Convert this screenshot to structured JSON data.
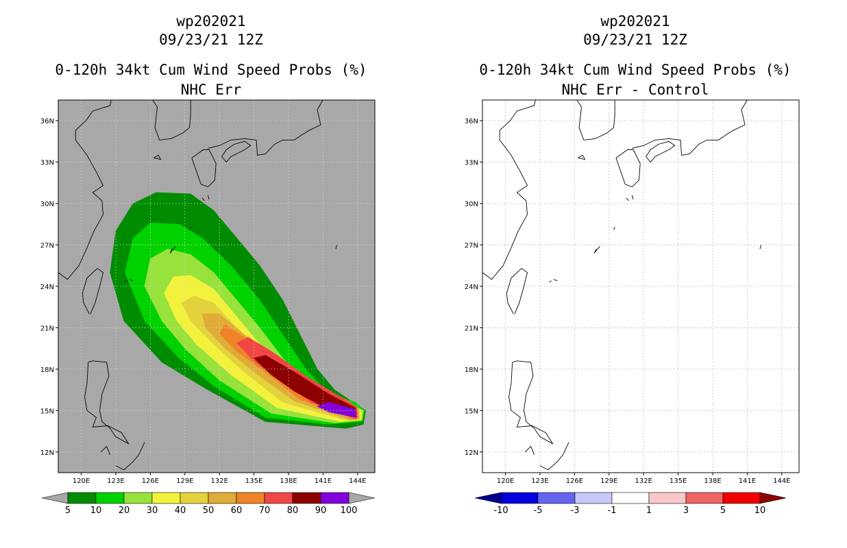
{
  "chart_data": [
    {
      "type": "heatmap",
      "storm_id": "wp202021",
      "datetime": "09/23/21 12Z",
      "title": "0-120h 34kt Cum Wind Speed Probs (%)",
      "subtitle": "NHC Err",
      "x_ticks": [
        "120E",
        "123E",
        "126E",
        "129E",
        "132E",
        "135E",
        "138E",
        "141E",
        "144E"
      ],
      "y_ticks": [
        "12N",
        "15N",
        "18N",
        "21N",
        "24N",
        "27N",
        "30N",
        "33N",
        "36N"
      ],
      "xlim": [
        118,
        145.5
      ],
      "ylim": [
        10.5,
        37.5
      ],
      "colorbar": {
        "levels": [
          "5",
          "10",
          "20",
          "30",
          "40",
          "50",
          "60",
          "70",
          "80",
          "90",
          "100"
        ],
        "colors": [
          "#008c00",
          "#00d200",
          "#98e23c",
          "#f2f23c",
          "#e4d23c",
          "#e0ab36",
          "#f08228",
          "#f04646",
          "#8c0000",
          "#8200dc"
        ]
      },
      "probability_field": [
        {
          "level": 5,
          "pts": [
            [
              141.5,
              13.8
            ],
            [
              136,
              14.2
            ],
            [
              131,
              16.5
            ],
            [
              127,
              18.5
            ],
            [
              123.7,
              21.5
            ],
            [
              122.5,
              25
            ],
            [
              123,
              28
            ],
            [
              124.5,
              30
            ],
            [
              126.5,
              30.8
            ],
            [
              129.5,
              30.7
            ],
            [
              131.5,
              29.5
            ],
            [
              133.5,
              27.5
            ],
            [
              135.5,
              25.5
            ],
            [
              137.5,
              23
            ],
            [
              139,
              20.5
            ],
            [
              140.5,
              18
            ],
            [
              142,
              16.5
            ],
            [
              143.8,
              15.5
            ],
            [
              144.7,
              15
            ],
            [
              144.5,
              14
            ],
            [
              143,
              13.7
            ]
          ]
        },
        {
          "level": 10,
          "pts": [
            [
              141.5,
              14
            ],
            [
              136,
              14.5
            ],
            [
              131.5,
              16.8
            ],
            [
              128.5,
              18.8
            ],
            [
              125.5,
              21.5
            ],
            [
              123.8,
              25
            ],
            [
              124.5,
              27.5
            ],
            [
              126,
              28.6
            ],
            [
              128.5,
              28.5
            ],
            [
              130.5,
              27.5
            ],
            [
              133,
              25.5
            ],
            [
              135.5,
              23
            ],
            [
              137.5,
              20.5
            ],
            [
              139.5,
              18
            ],
            [
              141.5,
              16.2
            ],
            [
              143.8,
              15.6
            ],
            [
              144.6,
              15
            ],
            [
              144.4,
              14.2
            ]
          ]
        },
        {
          "level": 20,
          "pts": [
            [
              142,
              14.1
            ],
            [
              136.5,
              14.8
            ],
            [
              132,
              17.2
            ],
            [
              129,
              19.5
            ],
            [
              127,
              21.5
            ],
            [
              125.5,
              24
            ],
            [
              126,
              26
            ],
            [
              127.5,
              26.7
            ],
            [
              129.5,
              26.3
            ],
            [
              131.5,
              25
            ],
            [
              133.5,
              23
            ],
            [
              135.5,
              21
            ],
            [
              137.5,
              18.8
            ],
            [
              140,
              16.6
            ],
            [
              143,
              15.7
            ],
            [
              144.5,
              15
            ],
            [
              144.4,
              14.3
            ]
          ]
        },
        {
          "level": 30,
          "pts": [
            [
              142.5,
              14.2
            ],
            [
              137,
              15.2
            ],
            [
              133,
              17.6
            ],
            [
              130,
              19.8
            ],
            [
              128.3,
              21.5
            ],
            [
              127.2,
              23.5
            ],
            [
              128,
              24.7
            ],
            [
              129.5,
              24.8
            ],
            [
              131.5,
              23.8
            ],
            [
              133.5,
              21.8
            ],
            [
              135.5,
              19.8
            ],
            [
              138,
              17.6
            ],
            [
              141,
              16
            ],
            [
              143.5,
              15.4
            ],
            [
              144.4,
              14.9
            ],
            [
              144.3,
              14.3
            ]
          ]
        },
        {
          "level": 40,
          "pts": [
            [
              143,
              14.3
            ],
            [
              137.5,
              15.6
            ],
            [
              134,
              17.9
            ],
            [
              131.5,
              19.8
            ],
            [
              129.5,
              21.5
            ],
            [
              128.7,
              22.8
            ],
            [
              129.8,
              23.3
            ],
            [
              131.5,
              22.8
            ],
            [
              133.5,
              21
            ],
            [
              136,
              19
            ],
            [
              139,
              17.2
            ],
            [
              142,
              16
            ],
            [
              144.2,
              15
            ],
            [
              144.2,
              14.3
            ]
          ]
        },
        {
          "level": 50,
          "pts": [
            [
              143.4,
              14.3
            ],
            [
              138.5,
              15.7
            ],
            [
              135,
              17.8
            ],
            [
              132.5,
              19.5
            ],
            [
              130.8,
              21
            ],
            [
              130.5,
              22
            ],
            [
              132,
              22
            ],
            [
              134,
              20.6
            ],
            [
              137,
              18.7
            ],
            [
              140,
              17
            ],
            [
              143,
              15.8
            ],
            [
              144.1,
              15
            ],
            [
              144.1,
              14.4
            ]
          ]
        },
        {
          "level": 60,
          "pts": [
            [
              143.6,
              14.4
            ],
            [
              139,
              15.8
            ],
            [
              136,
              17.8
            ],
            [
              133.5,
              19.3
            ],
            [
              132,
              20.6
            ],
            [
              132.5,
              21.2
            ],
            [
              134,
              20.4
            ],
            [
              137,
              18.5
            ],
            [
              140.5,
              16.9
            ],
            [
              143.4,
              15.6
            ],
            [
              144,
              15
            ],
            [
              144,
              14.4
            ]
          ]
        },
        {
          "level": 70,
          "pts": [
            [
              143.8,
              14.4
            ],
            [
              140,
              15.6
            ],
            [
              137,
              17.3
            ],
            [
              135,
              18.6
            ],
            [
              133.5,
              19.9
            ],
            [
              134.5,
              20.3
            ],
            [
              136.5,
              19.3
            ],
            [
              139.5,
              17.5
            ],
            [
              142.5,
              16
            ],
            [
              144,
              15.2
            ],
            [
              144,
              14.5
            ]
          ]
        },
        {
          "level": 80,
          "pts": [
            [
              143.9,
              14.5
            ],
            [
              141,
              15.3
            ],
            [
              138.5,
              16.4
            ],
            [
              136.5,
              17.6
            ],
            [
              135,
              18.8
            ],
            [
              136,
              19
            ],
            [
              138.5,
              17.8
            ],
            [
              141.5,
              16.2
            ],
            [
              143.8,
              15.2
            ]
          ]
        },
        {
          "level": 90,
          "pts": [
            [
              143.9,
              14.5
            ],
            [
              141.5,
              14.9
            ],
            [
              140.5,
              15.3
            ],
            [
              141.5,
              15.6
            ],
            [
              143.7,
              15.1
            ]
          ]
        }
      ]
    },
    {
      "type": "heatmap",
      "storm_id": "wp202021",
      "datetime": "09/23/21 12Z",
      "title": "0-120h 34kt Cum Wind Speed Probs (%)",
      "subtitle": "NHC Err - Control",
      "x_ticks": [
        "120E",
        "123E",
        "126E",
        "129E",
        "132E",
        "135E",
        "138E",
        "141E",
        "144E"
      ],
      "y_ticks": [
        "12N",
        "15N",
        "18N",
        "21N",
        "24N",
        "27N",
        "30N",
        "33N",
        "36N"
      ],
      "xlim": [
        118,
        145.5
      ],
      "ylim": [
        10.5,
        37.5
      ],
      "colorbar": {
        "levels": [
          "-10",
          "-5",
          "-3",
          "-1",
          "1",
          "3",
          "5",
          "10"
        ],
        "colors": [
          "#0000dc",
          "#6464f0",
          "#c8c8fa",
          "#ffffff",
          "#fac8c8",
          "#f06464",
          "#f00000"
        ],
        "end_colors": [
          "#00008c",
          "#8c0000"
        ]
      },
      "probability_field": []
    }
  ],
  "coastlines": [
    [
      [
        118,
        25
      ],
      [
        118.8,
        24.5
      ],
      [
        119.8,
        25.5
      ],
      [
        120.5,
        26.8
      ],
      [
        121.1,
        28
      ],
      [
        121.9,
        29.2
      ],
      [
        121.8,
        30.2
      ],
      [
        121,
        30.8
      ],
      [
        121.9,
        31.3
      ],
      [
        121.3,
        32.3
      ],
      [
        120.5,
        33.5
      ],
      [
        119.5,
        34.6
      ],
      [
        119.5,
        35.3
      ],
      [
        120.4,
        36
      ],
      [
        121,
        36.7
      ],
      [
        122.5,
        37.1
      ],
      [
        122.6,
        37.5
      ]
    ],
    [
      [
        120.7,
        22
      ],
      [
        120.2,
        22.8
      ],
      [
        120.1,
        23.5
      ],
      [
        120.5,
        24.6
      ],
      [
        121.4,
        25.3
      ],
      [
        121.9,
        25
      ],
      [
        121.6,
        24
      ],
      [
        121.2,
        22.8
      ],
      [
        120.8,
        22
      ]
    ],
    [
      [
        120.6,
        18.5
      ],
      [
        120.5,
        17
      ],
      [
        120.3,
        16
      ],
      [
        120.5,
        15
      ],
      [
        121.3,
        14.5
      ],
      [
        121,
        13.8
      ],
      [
        122.3,
        13.9
      ],
      [
        123.5,
        13.4
      ],
      [
        124.1,
        12.6
      ],
      [
        123,
        13.1
      ],
      [
        122.5,
        13.7
      ],
      [
        121.8,
        14.2
      ],
      [
        121.6,
        15
      ],
      [
        121.8,
        16.2
      ],
      [
        122.4,
        17.5
      ],
      [
        122.2,
        18.5
      ],
      [
        121,
        18.6
      ],
      [
        120.6,
        18.5
      ]
    ],
    [
      [
        121.7,
        12
      ],
      [
        122.2,
        12.4
      ],
      [
        122.5,
        11.8
      ]
    ],
    [
      [
        123,
        11
      ],
      [
        123.7,
        10.7
      ],
      [
        124.5,
        11.3
      ],
      [
        125,
        11.8
      ],
      [
        125.5,
        12.7
      ]
    ],
    [
      [
        126.2,
        37.5
      ],
      [
        126.6,
        37
      ],
      [
        126.4,
        35.5
      ],
      [
        126.8,
        34.6
      ],
      [
        127.8,
        34.7
      ],
      [
        128.8,
        35.1
      ],
      [
        129.4,
        35.5
      ],
      [
        129.5,
        36.4
      ],
      [
        129.5,
        37.5
      ]
    ],
    [
      [
        126.3,
        33.3
      ],
      [
        126.9,
        33.2
      ],
      [
        126.7,
        33.5
      ],
      [
        126.3,
        33.3
      ]
    ],
    [
      [
        129.6,
        33.3
      ],
      [
        130.4,
        31.4
      ],
      [
        131,
        31.2
      ],
      [
        131.6,
        31.7
      ],
      [
        131.7,
        32.9
      ],
      [
        131.1,
        33.9
      ],
      [
        130.6,
        33.9
      ],
      [
        129.6,
        33.3
      ]
    ],
    [
      [
        131,
        34
      ],
      [
        132,
        34.2
      ],
      [
        133,
        34.6
      ],
      [
        134.2,
        34.7
      ],
      [
        135.2,
        34.6
      ],
      [
        135.3,
        33.5
      ],
      [
        136,
        33.6
      ],
      [
        136.8,
        34.3
      ],
      [
        137.5,
        34.6
      ],
      [
        138.5,
        34.6
      ],
      [
        139.2,
        35
      ],
      [
        139.8,
        35.3
      ],
      [
        140.8,
        35.7
      ],
      [
        140.5,
        36.8
      ],
      [
        141,
        37.5
      ]
    ],
    [
      [
        132.6,
        33
      ],
      [
        133,
        33.4
      ],
      [
        134.2,
        33.9
      ],
      [
        134.7,
        34.2
      ],
      [
        134.2,
        34.5
      ],
      [
        133.3,
        34.3
      ],
      [
        132.6,
        33.9
      ],
      [
        132.2,
        33.4
      ],
      [
        132.6,
        33
      ]
    ],
    [
      [
        130.5,
        30.4
      ],
      [
        130.7,
        30.2
      ]
    ],
    [
      [
        131,
        30.6
      ],
      [
        131.1,
        30.3
      ]
    ],
    [
      [
        129.5,
        28.3
      ],
      [
        129.4,
        28.1
      ]
    ],
    [
      [
        128.2,
        26.9
      ],
      [
        127.7,
        26.4
      ],
      [
        127.9,
        26.7
      ]
    ],
    [
      [
        124.2,
        24.5
      ],
      [
        124.5,
        24.4
      ]
    ],
    [
      [
        123.8,
        24.3
      ],
      [
        124,
        24.4
      ]
    ],
    [
      [
        142.2,
        27
      ],
      [
        142.1,
        26.7
      ]
    ]
  ]
}
